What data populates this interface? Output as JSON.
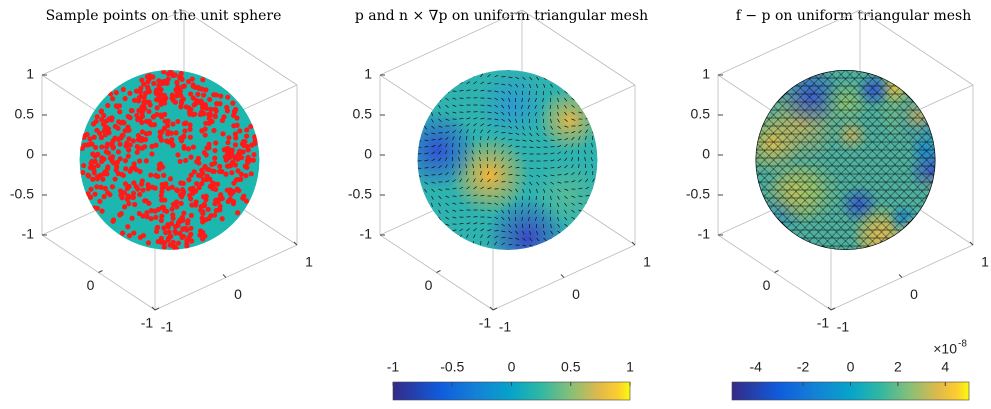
{
  "chart_data": [
    {
      "type": "scatter3d",
      "title": "Sample points on the unit sphere",
      "xlim": [
        -1,
        1
      ],
      "ylim": [
        -1,
        1
      ],
      "zlim": [
        -1,
        1
      ],
      "xticks": [
        -1,
        0,
        1
      ],
      "yticks": [
        -1,
        0
      ],
      "zticks": [
        -1,
        -0.5,
        0,
        0.5,
        1
      ],
      "surface_color": "#1cb8b0",
      "point_color": "#ff1a1a"
    },
    {
      "type": "surface3d",
      "title": "p and n × ∇p on uniform triangular mesh",
      "xlim": [
        -1,
        1
      ],
      "ylim": [
        -1,
        1
      ],
      "zlim": [
        -1,
        1
      ],
      "xticks": [
        -1,
        0,
        1
      ],
      "yticks": [
        -1,
        0
      ],
      "zticks": [
        -1,
        -0.5,
        0,
        0.5,
        1
      ],
      "arrows": true,
      "clim": [
        -1,
        1
      ],
      "cticks": [
        -1,
        -0.5,
        0,
        0.5,
        1
      ]
    },
    {
      "type": "mesh3d",
      "title": "f − p on uniform triangular mesh",
      "xlim": [
        -1,
        1
      ],
      "ylim": [
        -1,
        1
      ],
      "zlim": [
        -1,
        1
      ],
      "xticks": [
        -1,
        0,
        1
      ],
      "yticks": [
        -1,
        0
      ],
      "zticks": [
        -1,
        -0.5,
        0,
        0.5,
        1
      ],
      "clim": [
        -5,
        5
      ],
      "cticks": [
        -4,
        -2,
        0,
        2,
        4
      ],
      "cscale": {
        "base": "×10",
        "exponent": "-8"
      }
    }
  ]
}
